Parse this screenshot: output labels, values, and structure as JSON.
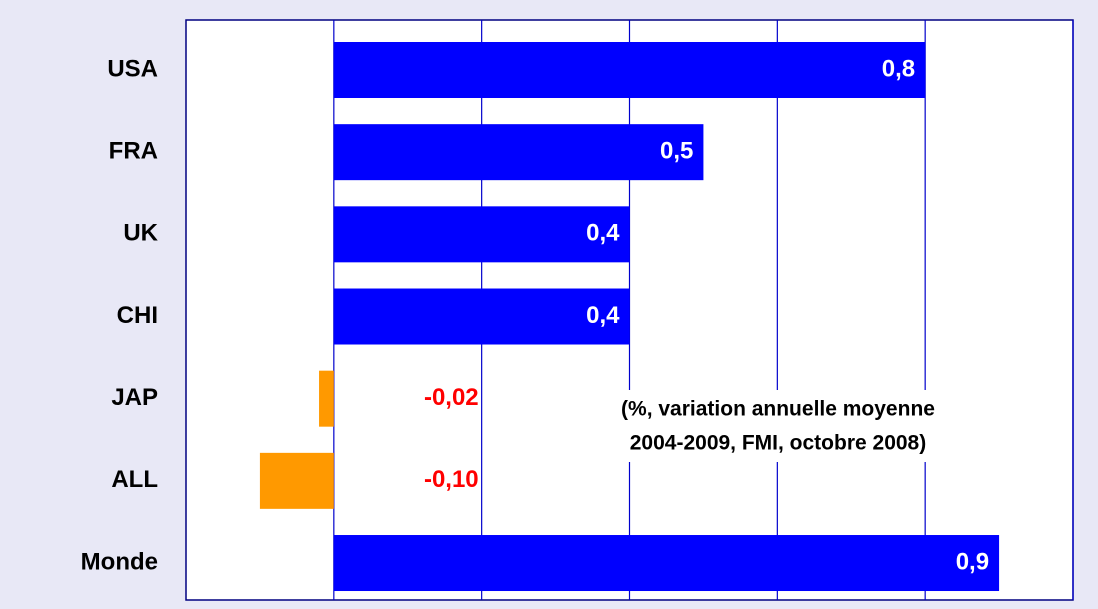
{
  "chart_data": {
    "type": "hbar",
    "categories": [
      "USA",
      "FRA",
      "UK",
      "CHI",
      "JAP",
      "ALL",
      "Monde"
    ],
    "values": [
      0.8,
      0.5,
      0.4,
      0.4,
      -0.02,
      -0.1,
      0.9
    ],
    "value_labels": [
      "0,8",
      "0,5",
      "0,4",
      "0,4",
      "-0,02",
      "-0,10",
      "0,9"
    ],
    "colors": [
      "#0000ff",
      "#0000ff",
      "#0000ff",
      "#0000ff",
      "#ff9900",
      "#ff9900",
      "#0000ff"
    ],
    "xlim": [
      -0.2,
      1.0
    ],
    "xticks": [
      0,
      0.2,
      0.4,
      0.6,
      0.8,
      1.0
    ],
    "grid": true,
    "annotation": [
      "(%, variation annuelle moyenne",
      "2004-2009, FMI, octobre 2008)"
    ]
  }
}
